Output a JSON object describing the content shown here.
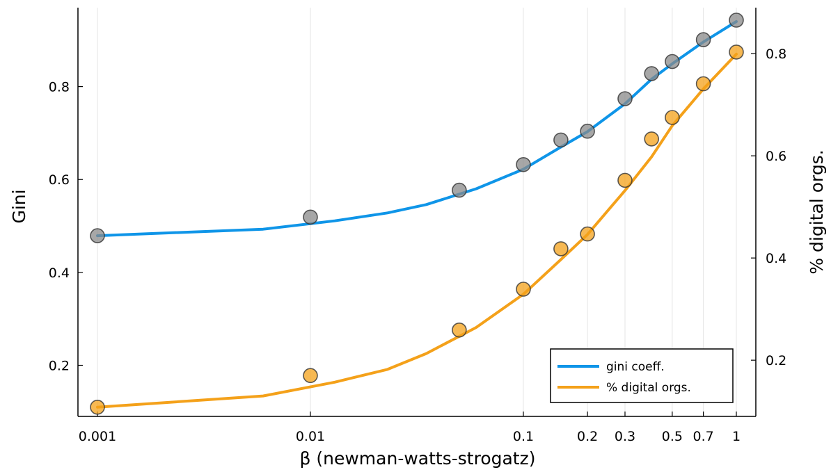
{
  "chart_data": {
    "type": "scatter",
    "xlabel": "β (newman-watts-strogatz)",
    "ylabel_left": "Gini",
    "ylabel_right": "% digital orgs.",
    "x_scale": "log10",
    "xlim": [
      0.001,
      1
    ],
    "ylim_left": [
      0.09,
      0.97
    ],
    "ylim_right": [
      0.09,
      0.89
    ],
    "x_ticks": [
      0.001,
      0.01,
      0.1,
      0.2,
      0.3,
      0.5,
      0.7,
      1
    ],
    "x_tick_labels": [
      "0.001",
      "0.01",
      "0.1",
      "0.2",
      "0.3",
      "0.5",
      "0.7",
      "1"
    ],
    "y_ticks_left": [
      0.2,
      0.4,
      0.6,
      0.8
    ],
    "y_tick_labels_left": [
      "0.2",
      "0.4",
      "0.6",
      "0.8"
    ],
    "y_ticks_right": [
      0.2,
      0.4,
      0.6,
      0.8
    ],
    "y_tick_labels_right": [
      "0.2",
      "0.4",
      "0.6",
      "0.8"
    ],
    "grid": "vertical lines at x ticks",
    "legend_position": "bottom-right",
    "x": [
      0.001,
      0.01,
      0.05,
      0.1,
      0.15,
      0.2,
      0.3,
      0.4,
      0.5,
      0.7,
      1
    ],
    "series": [
      {
        "name": "gini coeff.",
        "axis": "left",
        "color": "#0f95e8",
        "marker_color": "#8a8a8a",
        "points": [
          0.479,
          0.519,
          0.577,
          0.632,
          0.685,
          0.704,
          0.774,
          0.828,
          0.854,
          0.901,
          0.943
        ],
        "fit": [
          [
            0.001,
            0.479
          ],
          [
            0.006,
            0.493
          ],
          [
            0.013,
            0.511
          ],
          [
            0.023,
            0.528
          ],
          [
            0.035,
            0.546
          ],
          [
            0.06,
            0.58
          ],
          [
            0.1,
            0.622
          ],
          [
            0.15,
            0.67
          ],
          [
            0.2,
            0.703
          ],
          [
            0.3,
            0.763
          ],
          [
            0.4,
            0.816
          ],
          [
            0.5,
            0.849
          ],
          [
            0.7,
            0.896
          ],
          [
            1.0,
            0.94
          ]
        ]
      },
      {
        "name": "% digital orgs.",
        "axis": "right",
        "color": "#f4a11a",
        "marker_color": "#f4a11a",
        "points": [
          0.108,
          0.17,
          0.259,
          0.339,
          0.418,
          0.447,
          0.552,
          0.633,
          0.675,
          0.741,
          0.803
        ],
        "fit": [
          [
            0.001,
            0.108
          ],
          [
            0.006,
            0.13
          ],
          [
            0.013,
            0.157
          ],
          [
            0.023,
            0.182
          ],
          [
            0.035,
            0.213
          ],
          [
            0.06,
            0.264
          ],
          [
            0.1,
            0.329
          ],
          [
            0.15,
            0.397
          ],
          [
            0.2,
            0.446
          ],
          [
            0.3,
            0.532
          ],
          [
            0.4,
            0.598
          ],
          [
            0.5,
            0.659
          ],
          [
            0.7,
            0.731
          ],
          [
            1.0,
            0.799
          ]
        ]
      }
    ]
  }
}
